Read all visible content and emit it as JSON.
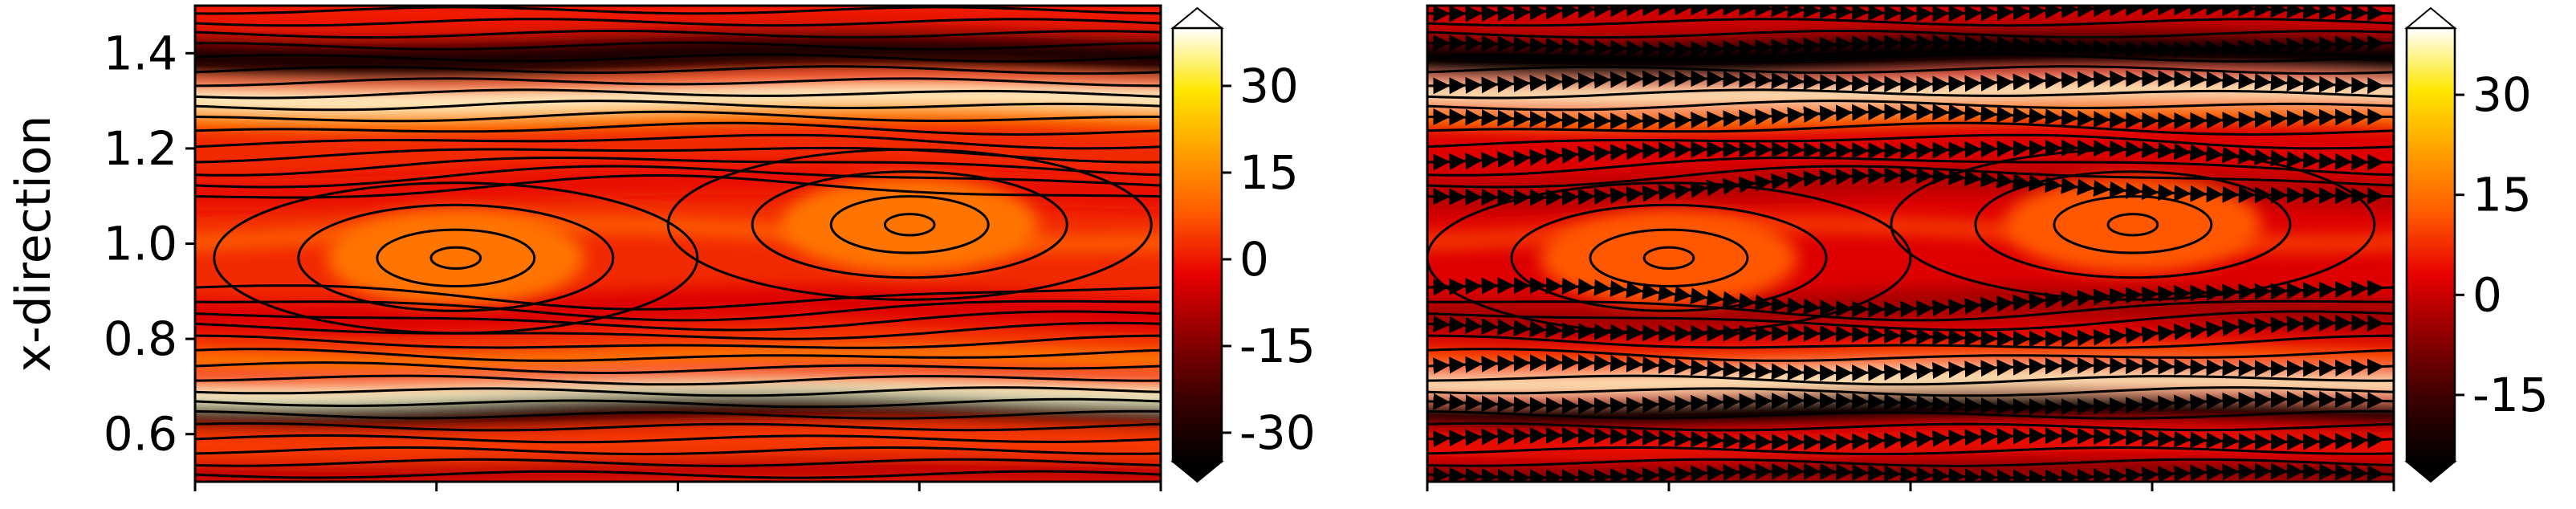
{
  "chart_data": [
    {
      "type": "heatmap",
      "title": "",
      "xlabel": "",
      "ylabel": "x-direction",
      "ylim": [
        0.5,
        1.5
      ],
      "y_ticks": [
        "0.6",
        "0.8",
        "1.0",
        "1.2",
        "1.4"
      ],
      "y_tick_values": [
        0.6,
        0.8,
        1.0,
        1.2,
        1.4
      ],
      "x_tick_count": 5,
      "x_tick_labels_visible": false,
      "colorbar": {
        "range": [
          -35,
          40
        ],
        "ticks": [
          "30",
          "15",
          "0",
          "-15",
          "-30"
        ],
        "tick_values": [
          30,
          15,
          0,
          -15,
          -30
        ],
        "extend": "both",
        "colormap": "hot"
      },
      "overlay": "streamlines",
      "vortex_centers": [
        {
          "x_frac": 0.27,
          "y": 0.97
        },
        {
          "x_frac": 0.74,
          "y": 1.04
        }
      ],
      "high_shear_bands_y": [
        1.31,
        0.69
      ],
      "low_value_bands_y": [
        1.38,
        0.64
      ]
    },
    {
      "type": "heatmap",
      "title": "",
      "xlabel": "",
      "ylabel": "",
      "ylim": [
        0.5,
        1.5
      ],
      "x_tick_count": 5,
      "x_tick_labels_visible": false,
      "colorbar": {
        "range": [
          -25,
          40
        ],
        "ticks": [
          "30",
          "15",
          "0",
          "-15"
        ],
        "tick_values": [
          30,
          15,
          0,
          -15
        ],
        "extend": "both",
        "colormap": "hot"
      },
      "overlay": "streamlines-with-arrows",
      "vortex_centers": [
        {
          "x_frac": 0.25,
          "y": 0.97
        },
        {
          "x_frac": 0.73,
          "y": 1.04
        }
      ],
      "high_shear_bands_y": [
        1.32,
        0.71
      ],
      "low_value_bands_y": [
        1.38,
        0.64
      ]
    }
  ],
  "colors": {
    "colormap_stops": [
      "#000000",
      "#3a0000",
      "#8c0000",
      "#e60000",
      "#ff5a00",
      "#ffa000",
      "#ffe600",
      "#ffffff"
    ],
    "axes": "#000000",
    "streamline": "#000000"
  }
}
